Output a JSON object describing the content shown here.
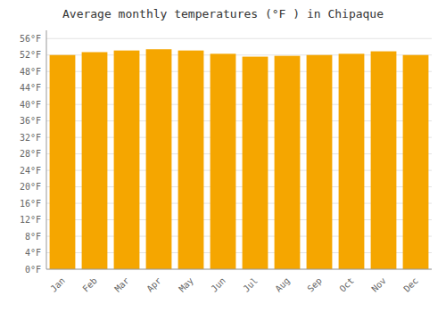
{
  "chart_data": {
    "type": "bar",
    "title": "Average monthly temperatures (°F ) in Chipaque",
    "categories": [
      "Jan",
      "Feb",
      "Mar",
      "Apr",
      "May",
      "Jun",
      "Jul",
      "Aug",
      "Sep",
      "Oct",
      "Nov",
      "Dec"
    ],
    "values": [
      52.0,
      52.7,
      53.1,
      53.4,
      53.1,
      52.3,
      51.6,
      51.8,
      52.0,
      52.3,
      52.9,
      52.0
    ],
    "color": "#F5A600",
    "ylim": [
      0,
      58
    ],
    "yticks": [
      {
        "value": 0,
        "label": "0°F"
      },
      {
        "value": 4,
        "label": "4°F"
      },
      {
        "value": 8,
        "label": "8°F"
      },
      {
        "value": 12,
        "label": "12°F"
      },
      {
        "value": 16,
        "label": "16°F"
      },
      {
        "value": 20,
        "label": "20°F"
      },
      {
        "value": 24,
        "label": "24°F"
      },
      {
        "value": 28,
        "label": "28°F"
      },
      {
        "value": 32,
        "label": "32°F"
      },
      {
        "value": 36,
        "label": "36°F"
      },
      {
        "value": 40,
        "label": "40°F"
      },
      {
        "value": 44,
        "label": "44°F"
      },
      {
        "value": 48,
        "label": "48°F"
      },
      {
        "value": 52,
        "label": "52°F"
      },
      {
        "value": 56,
        "label": "56°F"
      }
    ],
    "grid": true
  }
}
